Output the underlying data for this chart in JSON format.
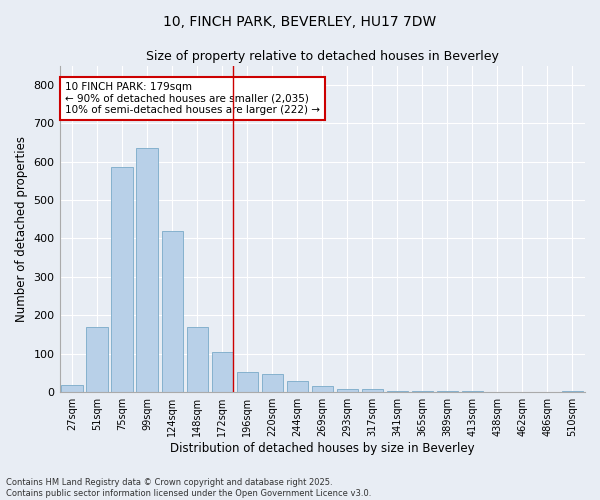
{
  "title_line1": "10, FINCH PARK, BEVERLEY, HU17 7DW",
  "title_line2": "Size of property relative to detached houses in Beverley",
  "xlabel": "Distribution of detached houses by size in Beverley",
  "ylabel": "Number of detached properties",
  "categories": [
    "27sqm",
    "51sqm",
    "75sqm",
    "99sqm",
    "124sqm",
    "148sqm",
    "172sqm",
    "196sqm",
    "220sqm",
    "244sqm",
    "269sqm",
    "293sqm",
    "317sqm",
    "341sqm",
    "365sqm",
    "389sqm",
    "413sqm",
    "438sqm",
    "462sqm",
    "486sqm",
    "510sqm"
  ],
  "values": [
    18,
    170,
    585,
    635,
    420,
    170,
    105,
    52,
    47,
    30,
    15,
    8,
    8,
    4,
    4,
    2,
    2,
    0,
    0,
    0,
    3
  ],
  "bar_color": "#b8d0e8",
  "bar_edge_color": "#7aaac8",
  "vline_x_index": 6.42,
  "vline_color": "#cc0000",
  "annotation_text": "10 FINCH PARK: 179sqm\n← 90% of detached houses are smaller (2,035)\n10% of semi-detached houses are larger (222) →",
  "annotation_edge_color": "#cc0000",
  "background_color": "#e8edf4",
  "ylim": [
    0,
    850
  ],
  "yticks": [
    0,
    100,
    200,
    300,
    400,
    500,
    600,
    700,
    800
  ],
  "footer_line1": "Contains HM Land Registry data © Crown copyright and database right 2025.",
  "footer_line2": "Contains public sector information licensed under the Open Government Licence v3.0."
}
